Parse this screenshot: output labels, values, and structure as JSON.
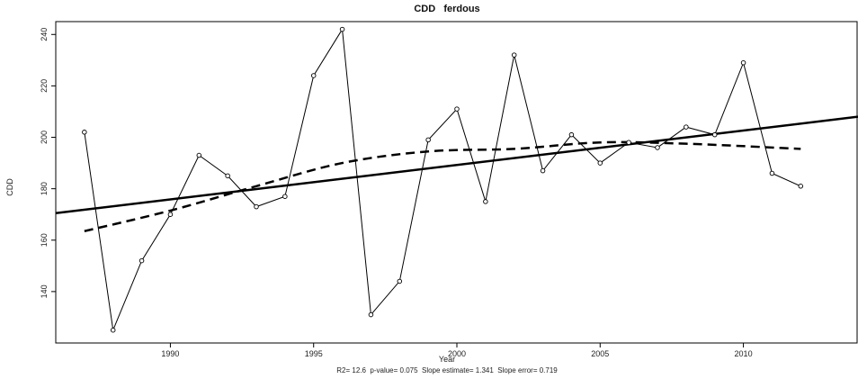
{
  "chart_data": {
    "type": "line",
    "title": "CDD   ferdous",
    "xlabel": "Year",
    "ylabel": "CDD",
    "stats_line": "R2= 12.6  p-value= 0.075  Slope estimate= 1.341  Slope error= 0.719",
    "xlim": [
      1986,
      2014
    ],
    "ylim": [
      120,
      245
    ],
    "x_ticks": [
      1990,
      1995,
      2000,
      2005,
      2010
    ],
    "y_ticks": [
      140,
      160,
      180,
      200,
      220,
      240
    ],
    "grid": false,
    "series": [
      {
        "kind": "observed",
        "style": "thin line with open circle markers",
        "x": [
          1987,
          1988,
          1989,
          1990,
          1991,
          1992,
          1993,
          1994,
          1995,
          1996,
          1997,
          1998,
          1999,
          2000,
          2001,
          2002,
          2003,
          2004,
          2005,
          2006,
          2007,
          2008,
          2009,
          2010,
          2011,
          2012
        ],
        "y": [
          202,
          125,
          152,
          170,
          193,
          185,
          173,
          177,
          224,
          242,
          131,
          144,
          199,
          211,
          175,
          232,
          187,
          201,
          190,
          198,
          196,
          204,
          201,
          229,
          186,
          181
        ]
      },
      {
        "kind": "linear-trend",
        "style": "thick solid line",
        "x": [
          1986,
          2014
        ],
        "y": [
          170.5,
          208.0
        ]
      },
      {
        "kind": "smoothed-trend",
        "style": "thick dashed line",
        "x": [
          1987,
          1990,
          1993,
          1996,
          1999,
          2002,
          2005,
          2008,
          2012
        ],
        "y": [
          163.5,
          171.5,
          181,
          190,
          194.5,
          195.5,
          198,
          197.5,
          195.5
        ]
      }
    ],
    "colors": {
      "lines": "#000000",
      "background": "#ffffff",
      "axis": "#000000"
    }
  }
}
